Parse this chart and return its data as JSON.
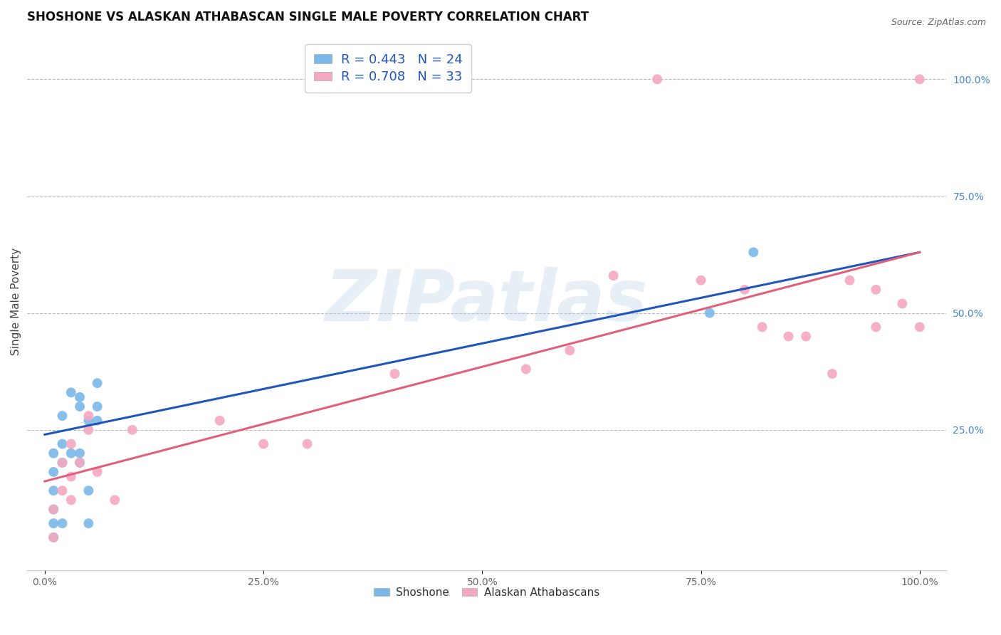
{
  "title": "SHOSHONE VS ALASKAN ATHABASCAN SINGLE MALE POVERTY CORRELATION CHART",
  "source": "Source: ZipAtlas.com",
  "ylabel": "Single Male Poverty",
  "shoshone_color": "#7ab8e8",
  "athabascan_color": "#f4a8c0",
  "shoshone_line_color": "#2255bb",
  "athabascan_line_color": "#e0607a",
  "legend_r_shoshone": "R = 0.443",
  "legend_n_shoshone": "N = 24",
  "legend_r_athabascan": "R = 0.708",
  "legend_n_athabascan": "N = 33",
  "watermark_text": "ZIPatlas",
  "background_color": "#ffffff",
  "grid_color": "#bbbbbb",
  "title_fontsize": 12,
  "axis_label_fontsize": 11,
  "tick_fontsize": 10,
  "marker_size": 100,
  "xlim": [
    -2,
    103
  ],
  "ylim": [
    -5,
    110
  ],
  "shoshone_x": [
    1,
    1,
    1,
    1,
    1,
    1,
    2,
    2,
    2,
    2,
    3,
    3,
    4,
    4,
    4,
    4,
    5,
    5,
    5,
    6,
    6,
    6,
    76,
    81
  ],
  "shoshone_y": [
    2,
    5,
    8,
    12,
    16,
    20,
    5,
    18,
    22,
    28,
    20,
    33,
    20,
    30,
    32,
    18,
    27,
    5,
    12,
    27,
    35,
    30,
    50,
    63
  ],
  "athabascan_x": [
    1,
    1,
    2,
    2,
    3,
    3,
    3,
    4,
    5,
    5,
    6,
    8,
    10,
    20,
    25,
    30,
    40,
    55,
    60,
    65,
    70,
    75,
    80,
    82,
    85,
    87,
    90,
    92,
    95,
    95,
    98,
    100,
    100
  ],
  "athabascan_y": [
    2,
    8,
    12,
    18,
    10,
    15,
    22,
    18,
    25,
    28,
    16,
    10,
    25,
    27,
    22,
    22,
    37,
    38,
    42,
    58,
    100,
    57,
    55,
    47,
    45,
    45,
    37,
    57,
    47,
    55,
    52,
    47,
    100
  ],
  "line_shoshone_x0": 0,
  "line_shoshone_y0": 24,
  "line_shoshone_x1": 100,
  "line_shoshone_y1": 63,
  "line_athabascan_x0": 0,
  "line_athabascan_y0": 14,
  "line_athabascan_x1": 100,
  "line_athabascan_y1": 63,
  "xtick_vals": [
    0,
    25,
    50,
    75,
    100
  ],
  "xtick_labels": [
    "0.0%",
    "25.0%",
    "50.0%",
    "75.0%",
    "100.0%"
  ],
  "ytick_vals": [
    25,
    50,
    75,
    100
  ],
  "ytick_labels": [
    "25.0%",
    "50.0%",
    "75.0%",
    "100.0%"
  ],
  "ytick_color": "#4488cc"
}
